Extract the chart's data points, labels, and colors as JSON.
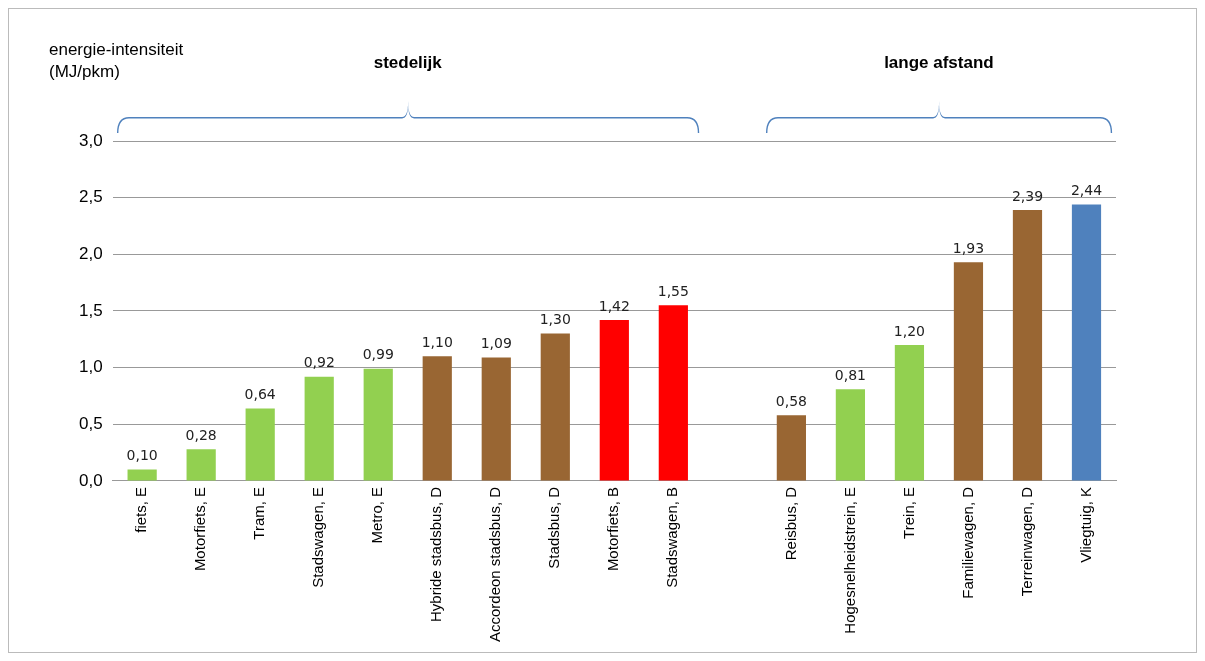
{
  "chart_data": {
    "type": "bar",
    "ylabel": "energie-intensiteit (MJ/pkm)",
    "annotations": [
      "stedelijk",
      "lange afstand"
    ],
    "categories": [
      "fiets, E",
      "Motorfiets, E",
      "Tram, E",
      "Stadswagen, E",
      "Metro, E",
      "Hybride stadsbus, D",
      "Accordeon stadsbus, D",
      "Stadsbus, D",
      "Motorfiets, B",
      "Stadswagen, B",
      null,
      "Reisbus, D",
      "Hogesnelheidstrein, E",
      "Trein, E",
      "Familiewagen, D",
      "Terreinwagen, D",
      "Vliegtuig, K"
    ],
    "values": [
      0.1,
      0.28,
      0.64,
      0.92,
      0.99,
      1.1,
      1.09,
      1.3,
      1.42,
      1.55,
      null,
      0.58,
      0.81,
      1.2,
      1.93,
      2.39,
      2.44
    ],
    "value_labels": [
      "0,10",
      "0,28",
      "0,64",
      "0,92",
      "0,99",
      "1,10",
      "1,09",
      "1,30",
      "1,42",
      "1,55",
      null,
      "0,58",
      "0,81",
      "1,20",
      "1,93",
      "2,39",
      "2,44"
    ],
    "colors": [
      "#92d050",
      "#92d050",
      "#92d050",
      "#92d050",
      "#92d050",
      "#996633",
      "#996633",
      "#996633",
      "#ff0000",
      "#ff0000",
      null,
      "#996633",
      "#92d050",
      "#92d050",
      "#996633",
      "#996633",
      "#4f81bd"
    ],
    "ylim": [
      0,
      3
    ],
    "yticks": [
      {
        "value": 0,
        "label": "0,0"
      },
      {
        "value": 0.5,
        "label": "0,5"
      },
      {
        "value": 1,
        "label": "1,0"
      },
      {
        "value": 1.5,
        "label": "1,5"
      },
      {
        "value": 2,
        "label": "2,0"
      },
      {
        "value": 2.5,
        "label": "2,5"
      },
      {
        "value": 3,
        "label": "3,0"
      }
    ],
    "grid": "y",
    "legend": false
  }
}
